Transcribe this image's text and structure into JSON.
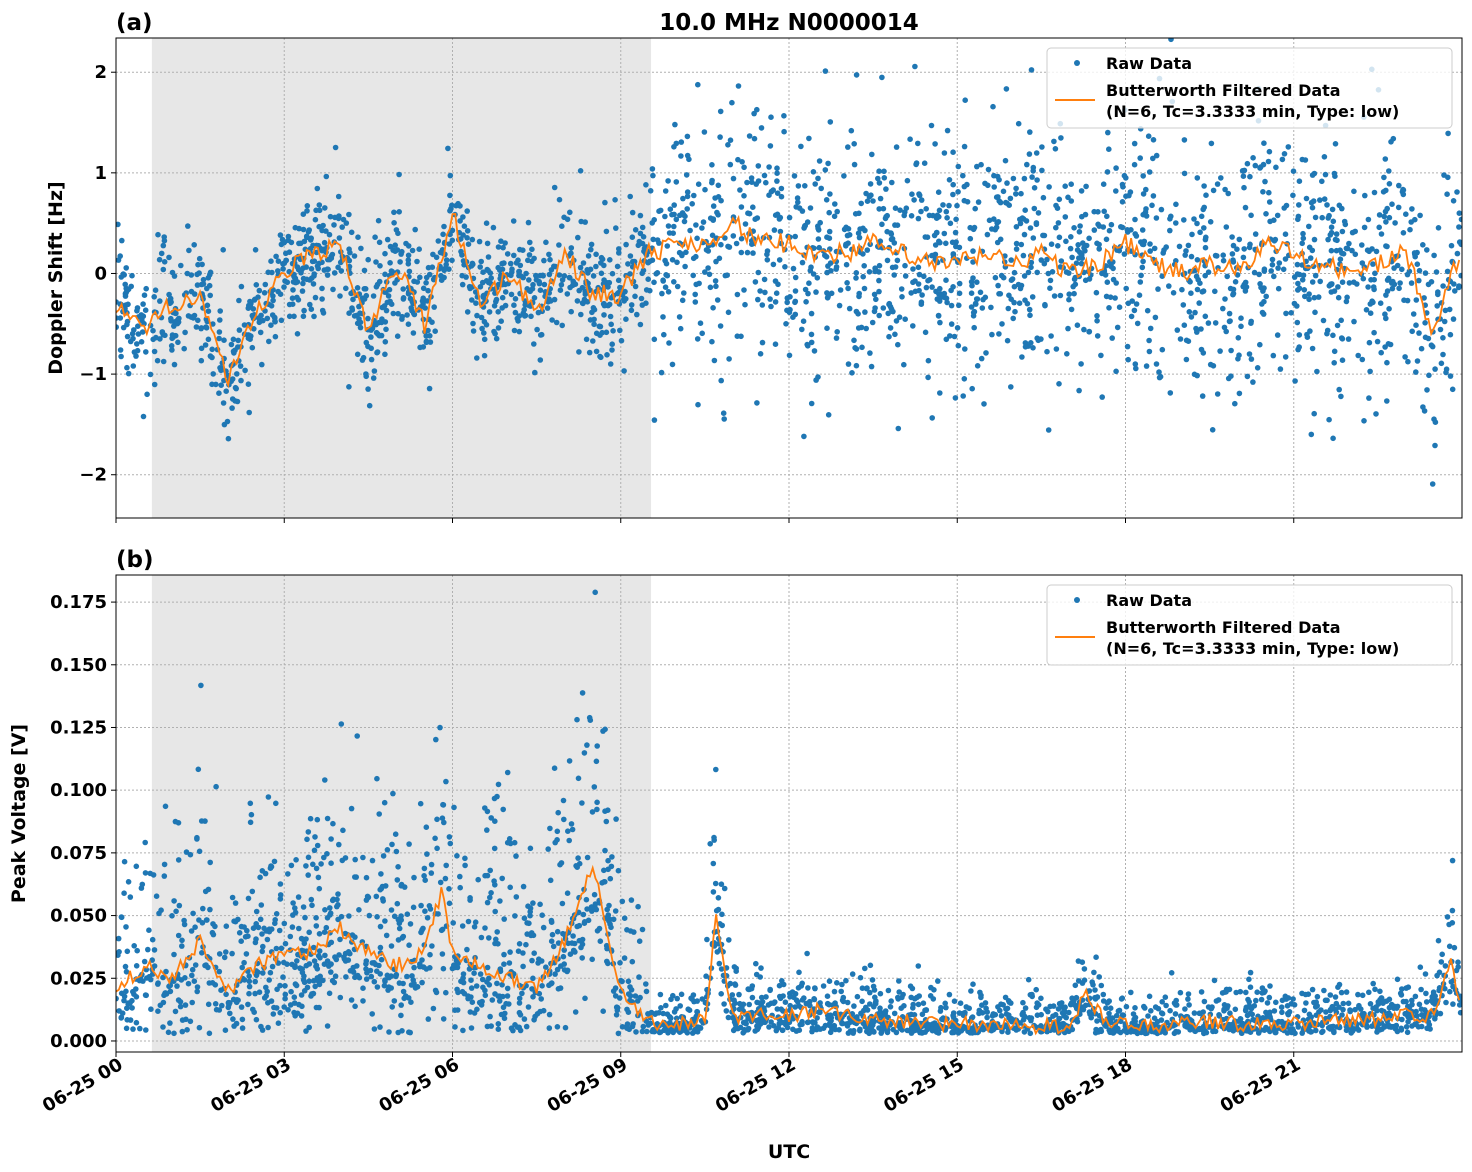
{
  "chart_data": [
    {
      "type": "scatter+line",
      "panel_label": "(a)",
      "title": "10.0 MHz N0000014",
      "xlabel": "",
      "ylabel": "Doppler Shift [Hz]",
      "xlim_hours": [
        0,
        24
      ],
      "ylim": [
        -2.43,
        2.34
      ],
      "x_ticks": [
        "06-25 00",
        "06-25 03",
        "06-25 06",
        "06-25 09",
        "06-25 12",
        "06-25 15",
        "06-25 18",
        "06-25 21"
      ],
      "y_ticks": [
        {
          "v": -2,
          "label": "−2"
        },
        {
          "v": -1,
          "label": "−1"
        },
        {
          "v": 0,
          "label": "0"
        },
        {
          "v": 1,
          "label": "1"
        },
        {
          "v": 2,
          "label": "2"
        }
      ],
      "grid": true,
      "shaded_span_hours": [
        0.64,
        9.54
      ],
      "legend": {
        "placement": "top-right",
        "entries": [
          "Raw Data",
          "Butterworth Filtered Data",
          "(N=6, Tc=3.3333 min, Type: low)"
        ]
      },
      "series": [
        {
          "name": "Butterworth Filtered Data",
          "color": "#ff7f0e",
          "x_hours": [
            0,
            0.5,
            1,
            1.5,
            2,
            2.5,
            3,
            3.5,
            4,
            4.5,
            5,
            5.5,
            6,
            6.5,
            7,
            7.5,
            8,
            8.5,
            9,
            9.5,
            10,
            10.5,
            11,
            11.5,
            12,
            12.5,
            13,
            13.5,
            14,
            14.5,
            15,
            15.5,
            16,
            16.5,
            17,
            17.5,
            18,
            18.5,
            19,
            19.5,
            20,
            20.5,
            21,
            21.5,
            22,
            22.5,
            23,
            23.5,
            24
          ],
          "values": [
            -0.3,
            -0.6,
            -0.3,
            -0.2,
            -1.1,
            -0.4,
            0.0,
            0.2,
            0.3,
            -0.6,
            0.1,
            -0.5,
            0.6,
            -0.3,
            0.0,
            -0.4,
            0.2,
            -0.2,
            -0.2,
            0.2,
            0.3,
            0.3,
            0.5,
            0.3,
            0.3,
            0.2,
            0.2,
            0.3,
            0.2,
            0.1,
            0.1,
            0.2,
            0.1,
            0.2,
            0.0,
            0.1,
            0.3,
            0.1,
            0.0,
            0.1,
            0.0,
            0.3,
            0.2,
            0.1,
            0.0,
            0.1,
            0.2,
            -0.6,
            0.3
          ]
        },
        {
          "name": "Raw Data",
          "color": "#1f77b4",
          "spread_hours": [
            0,
            9.5,
            9.6,
            24
          ],
          "spread": [
            0.3,
            0.3,
            0.6,
            0.6
          ]
        }
      ]
    },
    {
      "type": "scatter+line",
      "panel_label": "(b)",
      "xlabel": "UTC",
      "ylabel": "Peak Voltage [V]",
      "xlim_hours": [
        0,
        24
      ],
      "ylim": [
        -0.0044,
        0.1858
      ],
      "x_ticks": [
        "06-25 00",
        "06-25 03",
        "06-25 06",
        "06-25 09",
        "06-25 12",
        "06-25 15",
        "06-25 18",
        "06-25 21"
      ],
      "y_ticks": [
        {
          "v": 0,
          "label": "0.000"
        },
        {
          "v": 0.025,
          "label": "0.025"
        },
        {
          "v": 0.05,
          "label": "0.050"
        },
        {
          "v": 0.075,
          "label": "0.075"
        },
        {
          "v": 0.1,
          "label": "0.100"
        },
        {
          "v": 0.125,
          "label": "0.125"
        },
        {
          "v": 0.15,
          "label": "0.150"
        },
        {
          "v": 0.175,
          "label": "0.175"
        }
      ],
      "grid": true,
      "shaded_span_hours": [
        0.64,
        9.54
      ],
      "legend": {
        "placement": "top-right",
        "entries": [
          "Raw Data",
          "Butterworth Filtered Data",
          "(N=6, Tc=3.3333 min, Type: low)"
        ]
      },
      "series": [
        {
          "name": "Butterworth Filtered Data",
          "color": "#ff7f0e",
          "x_hours": [
            0,
            0.5,
            1,
            1.5,
            2,
            2.5,
            3,
            3.5,
            4,
            4.5,
            5,
            5.5,
            5.8,
            6,
            6.5,
            7,
            7.5,
            8,
            8.5,
            9,
            9.5,
            10,
            10.5,
            10.7,
            11,
            11.5,
            12,
            12.5,
            13,
            13.5,
            14,
            14.5,
            15,
            15.5,
            16,
            16.5,
            17,
            17.3,
            17.6,
            18,
            18.5,
            19,
            19.5,
            20,
            20.5,
            21,
            21.5,
            22,
            22.5,
            23,
            23.5,
            23.8,
            24
          ],
          "values": [
            0.02,
            0.03,
            0.025,
            0.04,
            0.02,
            0.03,
            0.035,
            0.035,
            0.045,
            0.035,
            0.03,
            0.035,
            0.06,
            0.035,
            0.03,
            0.025,
            0.02,
            0.04,
            0.07,
            0.02,
            0.007,
            0.007,
            0.008,
            0.05,
            0.01,
            0.01,
            0.01,
            0.012,
            0.01,
            0.008,
            0.008,
            0.007,
            0.007,
            0.006,
            0.006,
            0.006,
            0.006,
            0.02,
            0.008,
            0.006,
            0.006,
            0.007,
            0.008,
            0.007,
            0.007,
            0.007,
            0.008,
            0.008,
            0.009,
            0.01,
            0.01,
            0.035,
            0.01
          ]
        },
        {
          "name": "Raw Data",
          "color": "#1f77b4",
          "spread_hours": [
            0,
            9.3,
            9.6,
            24
          ],
          "spread": [
            0.012,
            0.012,
            0.003,
            0.003
          ]
        }
      ]
    }
  ]
}
